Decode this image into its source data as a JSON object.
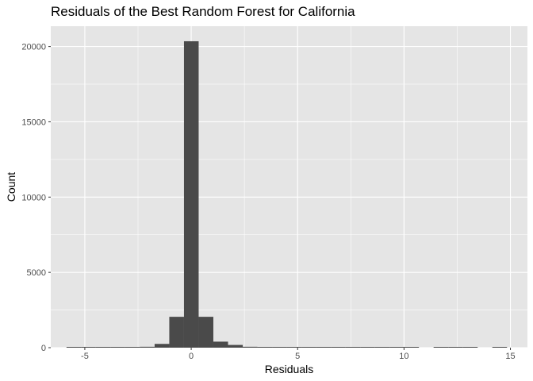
{
  "chart_data": {
    "type": "bar",
    "title": "Residuals of the Best Random Forest for California",
    "xlabel": "Residuals",
    "ylabel": "Count",
    "xlim": [
      -6.6,
      15.8
    ],
    "ylim": [
      0,
      21350
    ],
    "xticks": [
      -5,
      0,
      5,
      10,
      15
    ],
    "xtick_labels": [
      "-5",
      "0",
      "5",
      "10",
      "15"
    ],
    "yticks": [
      0,
      5000,
      10000,
      15000,
      20000
    ],
    "ytick_labels": [
      "0",
      "5000",
      "10000",
      "15000",
      "20000"
    ],
    "grid": true,
    "bar_color": "#4a4a4a",
    "panel_color": "#e5e5e5",
    "grid_color": "#ffffff",
    "bin_width": 0.69,
    "bins": [
      {
        "x0": -5.86,
        "x1": -5.17,
        "count": 3
      },
      {
        "x0": -5.17,
        "x1": -4.48,
        "count": 3
      },
      {
        "x0": -4.48,
        "x1": -3.79,
        "count": 3
      },
      {
        "x0": -3.79,
        "x1": -3.1,
        "count": 5
      },
      {
        "x0": -3.1,
        "x1": -2.41,
        "count": 8
      },
      {
        "x0": -2.41,
        "x1": -1.72,
        "count": 60
      },
      {
        "x0": -1.72,
        "x1": -1.03,
        "count": 250
      },
      {
        "x0": -1.03,
        "x1": -0.34,
        "count": 2050
      },
      {
        "x0": -0.34,
        "x1": 0.35,
        "count": 20350
      },
      {
        "x0": 0.35,
        "x1": 1.04,
        "count": 2050
      },
      {
        "x0": 1.04,
        "x1": 1.73,
        "count": 400
      },
      {
        "x0": 1.73,
        "x1": 2.42,
        "count": 180
      },
      {
        "x0": 2.42,
        "x1": 3.11,
        "count": 60
      },
      {
        "x0": 3.11,
        "x1": 3.8,
        "count": 15
      },
      {
        "x0": 3.8,
        "x1": 4.49,
        "count": 8
      },
      {
        "x0": 4.49,
        "x1": 5.18,
        "count": 5
      },
      {
        "x0": 5.18,
        "x1": 5.87,
        "count": 4
      },
      {
        "x0": 5.87,
        "x1": 6.56,
        "count": 3
      },
      {
        "x0": 6.56,
        "x1": 7.25,
        "count": 3
      },
      {
        "x0": 7.25,
        "x1": 7.94,
        "count": 2
      },
      {
        "x0": 7.94,
        "x1": 8.63,
        "count": 2
      },
      {
        "x0": 8.63,
        "x1": 9.32,
        "count": 2
      },
      {
        "x0": 9.32,
        "x1": 10.01,
        "count": 2
      },
      {
        "x0": 10.01,
        "x1": 10.7,
        "count": 2
      },
      {
        "x0": 11.39,
        "x1": 12.08,
        "count": 2
      },
      {
        "x0": 12.08,
        "x1": 12.77,
        "count": 2
      },
      {
        "x0": 12.77,
        "x1": 13.46,
        "count": 2
      },
      {
        "x0": 14.15,
        "x1": 14.84,
        "count": 2
      }
    ]
  }
}
